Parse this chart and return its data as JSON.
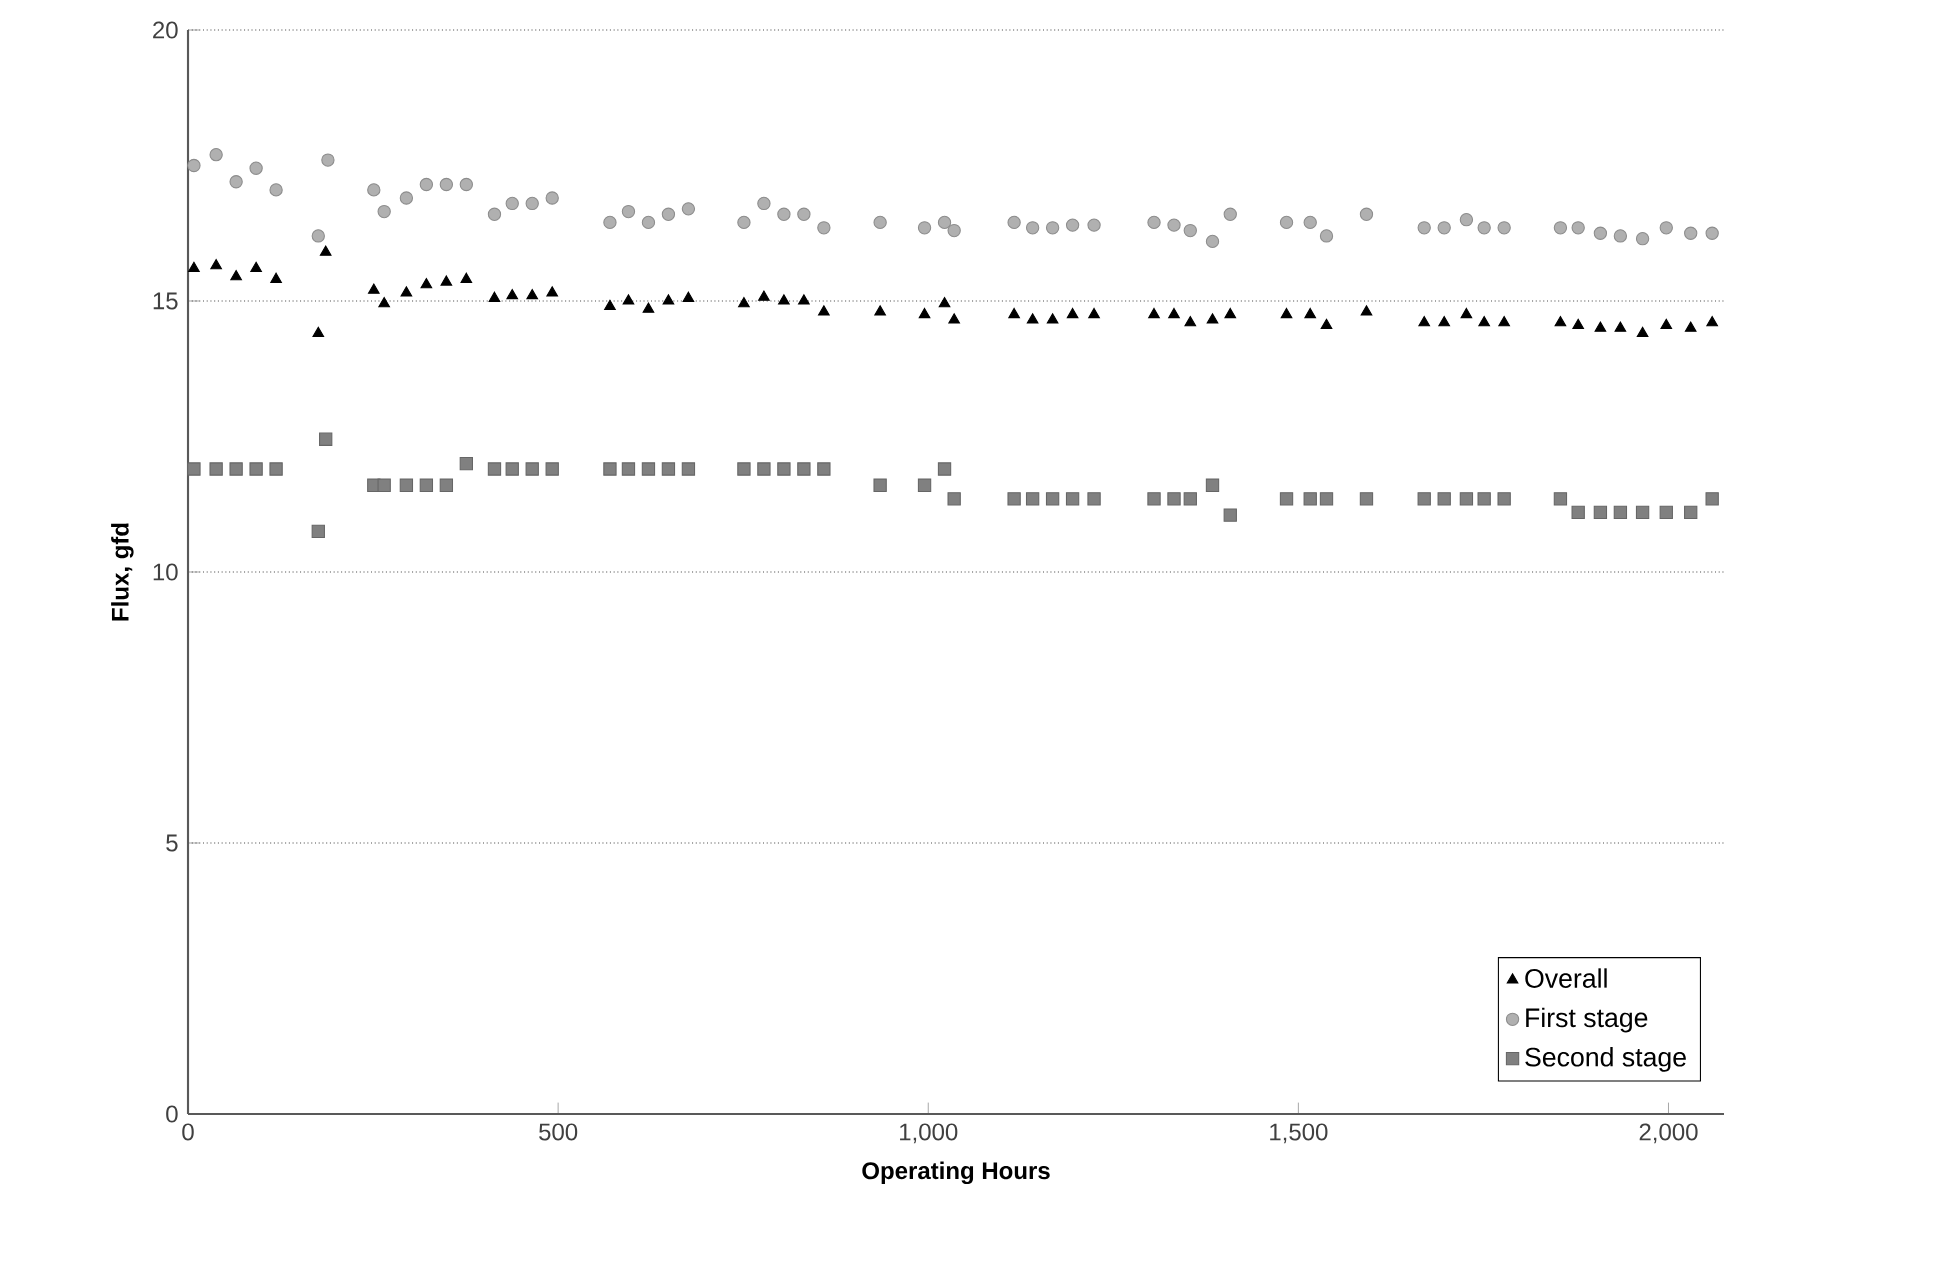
{
  "chart_data": {
    "type": "scatter",
    "xlabel": "Operating Hours",
    "ylabel": "Flux, gfd",
    "xlim": [
      0,
      2075
    ],
    "ylim": [
      0,
      20
    ],
    "xticks": [
      0,
      500,
      {
        "value": 1000,
        "label": "1,000"
      },
      {
        "value": 1500,
        "label": "1,500"
      },
      {
        "value": 2000,
        "label": "2,000"
      }
    ],
    "yticks": [
      0,
      5,
      10,
      15,
      20
    ],
    "grid": "y",
    "legend": "bottom right",
    "series": [
      {
        "name": "Overall",
        "color": "#000000",
        "marker": "triangle",
        "x": [
          8,
          38,
          65,
          92,
          119,
          176,
          186,
          251,
          265,
          295,
          322,
          349,
          376,
          414,
          438,
          465,
          492,
          570,
          595,
          622,
          649,
          676,
          751,
          778,
          805,
          832,
          859,
          935,
          995,
          1022,
          1035,
          1116,
          1141,
          1168,
          1195,
          1224,
          1305,
          1332,
          1354,
          1384,
          1408,
          1484,
          1516,
          1538,
          1592,
          1670,
          1697,
          1727,
          1751,
          1778,
          1854,
          1878,
          1908,
          1935,
          1965,
          1997,
          2030,
          2059
        ],
        "values": [
          15.6,
          15.65,
          15.45,
          15.6,
          15.4,
          14.4,
          15.9,
          15.2,
          14.95,
          15.15,
          15.3,
          15.35,
          15.4,
          15.05,
          15.1,
          15.1,
          15.15,
          14.9,
          15.0,
          14.85,
          15.0,
          15.05,
          14.95,
          15.07,
          15.0,
          15.0,
          14.8,
          14.8,
          14.75,
          14.95,
          14.65,
          14.75,
          14.65,
          14.65,
          14.75,
          14.75,
          14.75,
          14.75,
          14.6,
          14.65,
          14.75,
          14.75,
          14.75,
          14.55,
          14.8,
          14.6,
          14.6,
          14.75,
          14.6,
          14.6,
          14.6,
          14.55,
          14.5,
          14.5,
          14.4,
          14.55,
          14.5,
          14.6
        ]
      },
      {
        "name": "First stage",
        "color": "#b0b0b0",
        "marker": "circle",
        "x": [
          8,
          38,
          65,
          92,
          119,
          176,
          189,
          251,
          265,
          295,
          322,
          349,
          376,
          414,
          438,
          465,
          492,
          570,
          595,
          622,
          649,
          676,
          751,
          778,
          805,
          832,
          859,
          935,
          995,
          1022,
          1035,
          1116,
          1141,
          1168,
          1195,
          1224,
          1305,
          1332,
          1354,
          1384,
          1408,
          1484,
          1516,
          1538,
          1592,
          1670,
          1697,
          1727,
          1751,
          1778,
          1854,
          1878,
          1908,
          1935,
          1965,
          1997,
          2030,
          2059
        ],
        "values": [
          17.5,
          17.7,
          17.2,
          17.45,
          17.05,
          16.2,
          17.6,
          17.05,
          16.65,
          16.9,
          17.15,
          17.15,
          17.15,
          16.6,
          16.8,
          16.8,
          16.9,
          16.45,
          16.65,
          16.45,
          16.6,
          16.7,
          16.45,
          16.8,
          16.6,
          16.6,
          16.35,
          16.45,
          16.35,
          16.45,
          16.3,
          16.45,
          16.35,
          16.35,
          16.4,
          16.4,
          16.45,
          16.4,
          16.3,
          16.1,
          16.6,
          16.45,
          16.45,
          16.2,
          16.6,
          16.35,
          16.35,
          16.5,
          16.35,
          16.35,
          16.35,
          16.35,
          16.25,
          16.2,
          16.15,
          16.35,
          16.25,
          16.25
        ]
      },
      {
        "name": "Second stage",
        "color": "#808080",
        "marker": "square",
        "x": [
          8,
          38,
          65,
          92,
          119,
          176,
          186,
          251,
          265,
          295,
          322,
          349,
          376,
          414,
          438,
          465,
          492,
          570,
          595,
          622,
          649,
          676,
          751,
          778,
          805,
          832,
          859,
          935,
          995,
          1022,
          1035,
          1116,
          1141,
          1168,
          1195,
          1224,
          1305,
          1332,
          1354,
          1384,
          1408,
          1484,
          1516,
          1538,
          1592,
          1670,
          1697,
          1727,
          1751,
          1778,
          1854,
          1878,
          1908,
          1935,
          1965,
          1997,
          2030,
          2059
        ],
        "values": [
          11.9,
          11.9,
          11.9,
          11.9,
          11.9,
          10.75,
          12.45,
          11.6,
          11.6,
          11.6,
          11.6,
          11.6,
          12.0,
          11.9,
          11.9,
          11.9,
          11.9,
          11.9,
          11.9,
          11.9,
          11.9,
          11.9,
          11.9,
          11.9,
          11.9,
          11.9,
          11.9,
          11.6,
          11.6,
          11.9,
          11.35,
          11.35,
          11.35,
          11.35,
          11.35,
          11.35,
          11.35,
          11.35,
          11.35,
          11.6,
          11.05,
          11.35,
          11.35,
          11.35,
          11.35,
          11.35,
          11.35,
          11.35,
          11.35,
          11.35,
          11.35,
          11.1,
          11.1,
          11.1,
          11.1,
          11.1,
          11.1,
          11.35
        ]
      }
    ]
  }
}
